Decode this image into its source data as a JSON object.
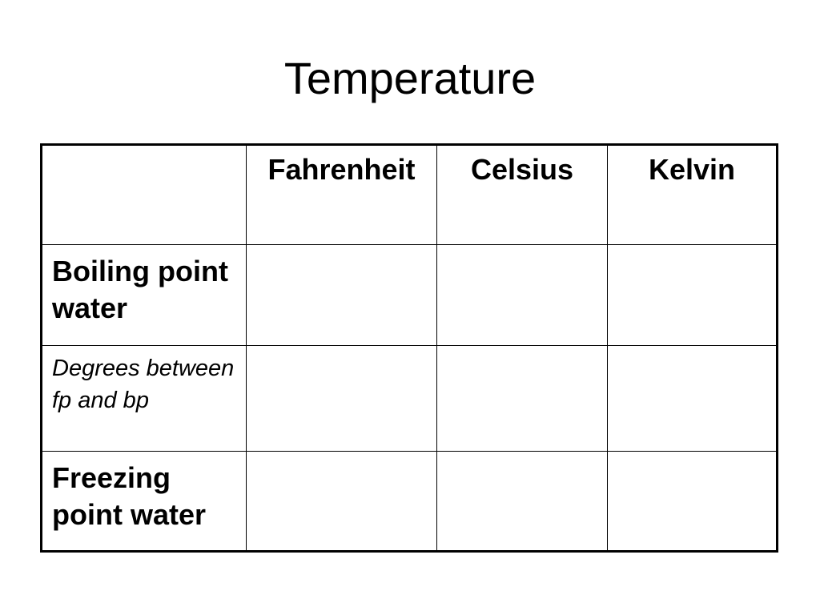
{
  "slide": {
    "title": "Temperature"
  },
  "table": {
    "header": {
      "corner": "",
      "columns": [
        "Fahrenheit",
        "Celsius",
        "Kelvin"
      ]
    },
    "rows": [
      {
        "label": "Boiling point water",
        "style": "bold",
        "values": [
          "",
          "",
          ""
        ]
      },
      {
        "label": "Degrees between fp and bp",
        "style": "italic",
        "values": [
          "",
          "",
          ""
        ]
      },
      {
        "label": "Freezing point water",
        "style": "bold",
        "values": [
          "",
          "",
          ""
        ]
      }
    ]
  }
}
